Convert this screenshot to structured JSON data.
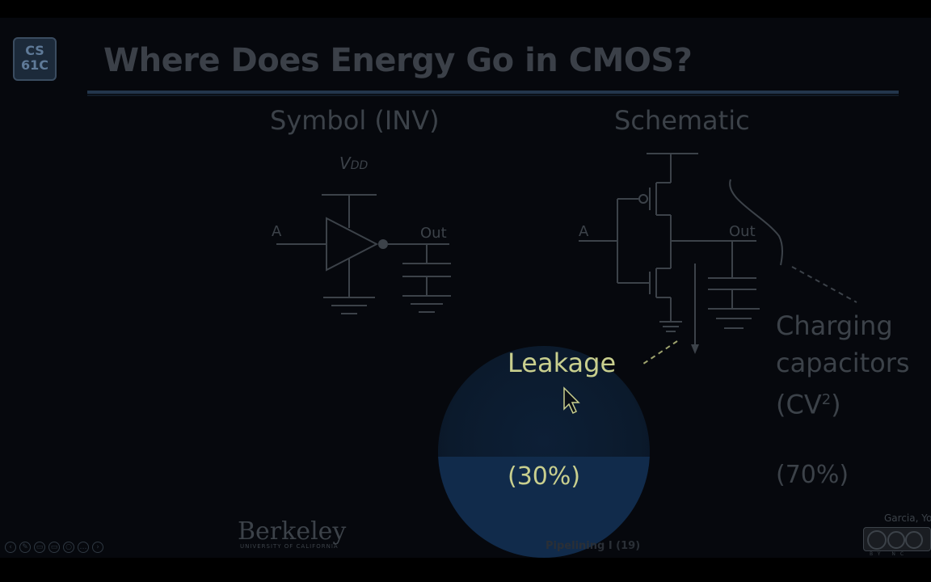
{
  "slide": {
    "logo_text": "CS\n61C",
    "title": "Where Does Energy Go in CMOS?",
    "symbol_caption": "Symbol (INV)",
    "schematic_caption": "Schematic",
    "vdd_label": "V",
    "vdd_sub": "DD",
    "symbol_input_label": "A",
    "symbol_output_label": "Out",
    "schematic_input_label": "A",
    "schematic_output_label": "Out",
    "charging_line1": "Charging",
    "charging_line2": "capacitors",
    "charging_line3_prefix": "(CV",
    "charging_line3_sup": "2",
    "charging_line3_suffix": ")",
    "charging_pct": "(70%)",
    "leakage_label": "Leakage",
    "leakage_pct": "(30%)",
    "university": "Berkeley",
    "university_sub": "UNIVERSITY OF CALIFORNIA",
    "footer_text": "Pipelining I (19)",
    "author": "Garcia, Yo",
    "license_text": "BY  NC",
    "colors": {
      "slide_bg": "#06080d",
      "dim_text": "#3c4249",
      "highlight_text": "#c9cf8e",
      "rule": "#23364c",
      "spot": "#112b4b"
    }
  },
  "nav_controls": [
    {
      "icon": "prev-icon",
      "glyph": "‹"
    },
    {
      "icon": "pen-icon",
      "glyph": "✎"
    },
    {
      "icon": "slides-icon",
      "glyph": "▭"
    },
    {
      "icon": "scenes-icon",
      "glyph": "▭"
    },
    {
      "icon": "zoom-icon",
      "glyph": "○"
    },
    {
      "icon": "more-icon",
      "glyph": "…"
    },
    {
      "icon": "next-icon",
      "glyph": "›"
    }
  ]
}
